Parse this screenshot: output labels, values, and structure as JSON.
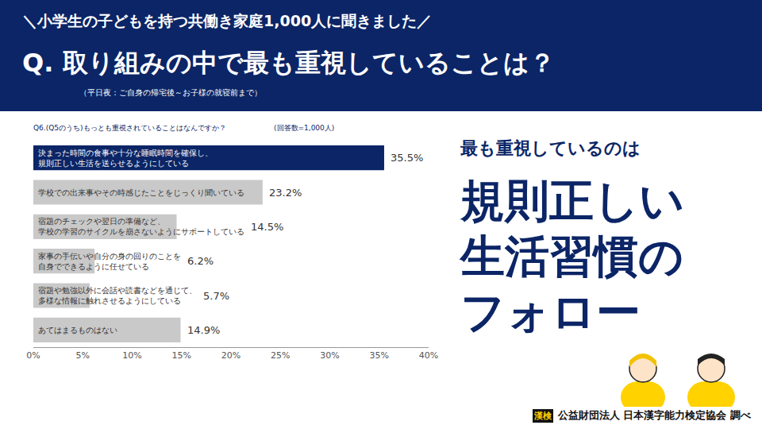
{
  "header": {
    "lead": "＼小学生の子どもを持つ共働き家庭1,000人に聞きました／",
    "title": "Q. 取り組みの中で最も重視していることは？",
    "note": "（平日夜：ご自身の帰宅後～お子様の就寝前まで）"
  },
  "chart_data": {
    "type": "bar",
    "orientation": "horizontal",
    "title": "Q6.(Q5のうち)もっとも重視されていることはなんですか？",
    "subtitle": "(回答数=1,000人)",
    "categories": [
      "決まった時間の食事や十分な睡眠時間を確保し、\n規則正しい生活を送らせるようにしている",
      "学校での出来事やその時感じたことをじっくり聞いている",
      "宿題のチェックや翌日の準備など、\n学校の学習のサイクルを崩さないようにサポートしている",
      "家事の手伝いや自分の身の回りのことを\n自身でできるように任せている",
      "宿題や勉強以外に会話や読書などを通じて、\n多様な情報に触れさせるようにしている",
      "あてはまるものはない"
    ],
    "values": [
      35.5,
      23.2,
      14.5,
      6.2,
      5.7,
      14.9
    ],
    "value_labels": [
      "35.5%",
      "23.2%",
      "14.5%",
      "6.2%",
      "5.7%",
      "14.9%"
    ],
    "colors": [
      "#0b2566",
      "#c9c9c9",
      "#c9c9c9",
      "#c9c9c9",
      "#c9c9c9",
      "#c9c9c9"
    ],
    "xlim": [
      0,
      40
    ],
    "xticks": [
      {
        "value": 0,
        "label": "0%"
      },
      {
        "value": 5,
        "label": "5%"
      },
      {
        "value": 10,
        "label": "10%"
      },
      {
        "value": 15,
        "label": "15%"
      },
      {
        "value": 20,
        "label": "20%"
      },
      {
        "value": 25,
        "label": "25%"
      },
      {
        "value": 30,
        "label": "30%"
      },
      {
        "value": 35,
        "label": "35%"
      },
      {
        "value": 40,
        "label": "40%"
      }
    ],
    "grid": false,
    "data_labels": true,
    "tick_labels": "x"
  },
  "side": {
    "lead": "最も重視しているのは",
    "headline": [
      "規則正しい",
      "生活習慣の",
      "フォロー"
    ]
  },
  "credit": {
    "badge": "漢検",
    "text": "公益財団法人 日本漢字能力検定協会 調べ"
  }
}
